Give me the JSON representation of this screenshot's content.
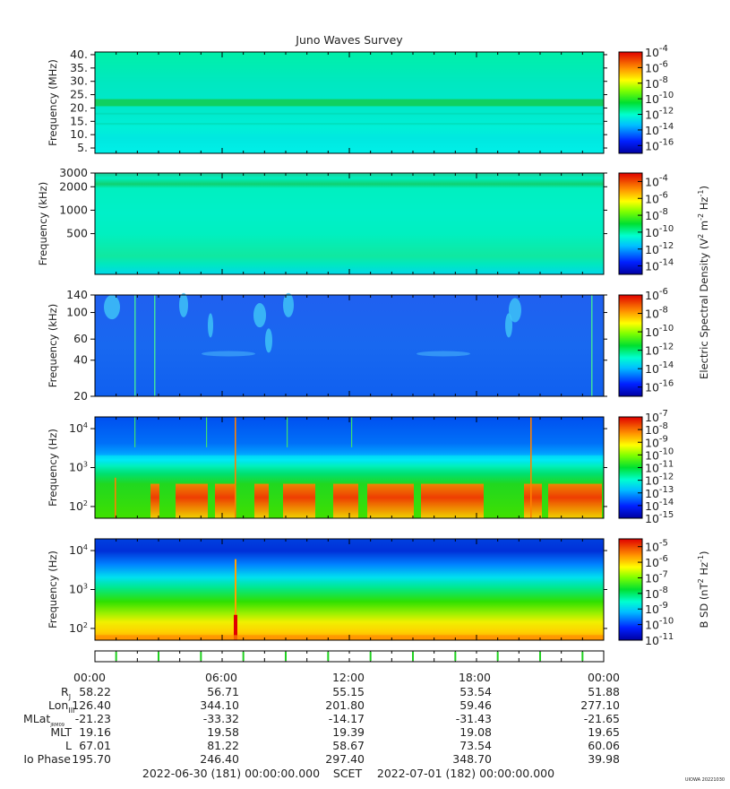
{
  "title": "Juno Waves Survey",
  "credit": "UIOWA 20221030",
  "colors": {
    "background": "#ffffff"
  },
  "chart_data": [
    {
      "type": "heatmap",
      "id": "p1",
      "ylabel": "Frequency (MHz)",
      "yscale": "linear",
      "ylim": [
        3,
        41
      ],
      "yticks": [
        5,
        10,
        15,
        20,
        25,
        30,
        35,
        40
      ],
      "yticklabels": [
        "5.",
        "10.",
        "15.",
        "20.",
        "25.",
        "30.",
        "35.",
        "40."
      ],
      "colorbar": {
        "min_exp": -17,
        "max_exp": -4,
        "tick_exps": [
          -16,
          -14,
          -12,
          -10,
          -8,
          -6,
          -4
        ],
        "labels": [
          "10",
          "10",
          "10",
          "10",
          "10",
          "10",
          "10"
        ],
        "sup": [
          "-16",
          "-14",
          "-12",
          "-10",
          "-8",
          "-6",
          "-4"
        ]
      }
    },
    {
      "type": "heatmap",
      "id": "p2",
      "ylabel": "Frequency (kHz)",
      "yscale": "log",
      "ylim": [
        150,
        3000
      ],
      "yticks": [
        500,
        1000,
        2000,
        3000
      ],
      "yticklabels": [
        "500",
        "1000",
        "2000",
        "3000"
      ],
      "colorbar": {
        "min_exp": -15,
        "max_exp": -3,
        "tick_exps": [
          -14,
          -12,
          -10,
          -8,
          -6,
          -4
        ],
        "labels": [
          "10",
          "10",
          "10",
          "10",
          "10",
          "10"
        ],
        "sup": [
          "-14",
          "-12",
          "-10",
          "-8",
          "-6",
          "-4"
        ]
      }
    },
    {
      "type": "heatmap",
      "id": "p3",
      "ylabel": "Frequency (kHz)",
      "yscale": "log",
      "ylim": [
        20,
        140
      ],
      "yticks": [
        20,
        40,
        60,
        100,
        140
      ],
      "yticklabels": [
        "20",
        "40",
        "60",
        "100",
        "140"
      ],
      "colorbar": {
        "min_exp": -17,
        "max_exp": -6,
        "tick_exps": [
          -16,
          -14,
          -12,
          -10,
          -8,
          -6
        ],
        "labels": [
          "10",
          "10",
          "10",
          "10",
          "10",
          "10"
        ],
        "sup": [
          "-16",
          "-14",
          "-12",
          "-10",
          "-8",
          "-6"
        ]
      }
    },
    {
      "type": "heatmap",
      "id": "p4",
      "ylabel": "Frequency (Hz)",
      "yscale": "log",
      "ylim": [
        50,
        20000
      ],
      "yticks": [
        100,
        1000,
        10000
      ],
      "yticklabels": [
        "10",
        "10",
        "10"
      ],
      "yticksup": [
        "2",
        "3",
        "4"
      ],
      "colorbar": {
        "min_exp": -15,
        "max_exp": -7,
        "tick_exps": [
          -15,
          -14,
          -13,
          -12,
          -11,
          -10,
          -9,
          -8,
          -7
        ],
        "labels": [
          "10",
          "10",
          "10",
          "10",
          "10",
          "10",
          "10",
          "10",
          "10"
        ],
        "sup": [
          "-15",
          "-14",
          "-13",
          "-12",
          "-11",
          "-10",
          "-9",
          "-8",
          "-7"
        ]
      }
    },
    {
      "type": "heatmap",
      "id": "p5",
      "ylabel": "Frequency (Hz)",
      "yscale": "log",
      "ylim": [
        50,
        20000
      ],
      "yticks": [
        100,
        1000,
        10000
      ],
      "yticklabels": [
        "10",
        "10",
        "10"
      ],
      "yticksup": [
        "2",
        "3",
        "4"
      ],
      "colorbar": {
        "min_exp": -11,
        "max_exp": -4.5,
        "tick_exps": [
          -11,
          -10,
          -9,
          -8,
          -7,
          -6,
          -5
        ],
        "labels": [
          "10",
          "10",
          "10",
          "10",
          "10",
          "10",
          "10"
        ],
        "sup": [
          "-11",
          "-10",
          "-9",
          "-8",
          "-7",
          "-6",
          "-5"
        ]
      }
    }
  ],
  "colorbar_labels": {
    "electric": "Electric Spectral Density (V",
    "electric_parts": [
      "Electric Spectral Density (V",
      "2",
      " m",
      "-2",
      " Hz",
      "-1",
      ")"
    ],
    "bsd_parts": [
      "B SD (nT",
      "2",
      " Hz",
      "-1",
      ")"
    ]
  },
  "time_axis": {
    "ticks": [
      "00:00",
      "06:00",
      "12:00",
      "18:00",
      "00:00"
    ],
    "xlim_hours": [
      0,
      24
    ]
  },
  "ephemeris": {
    "rows": [
      {
        "label": "R",
        "sub": "J",
        "values": [
          "58.22",
          "56.71",
          "55.15",
          "53.54",
          "51.88"
        ]
      },
      {
        "label": "Lon",
        "sub": "III",
        "values": [
          "126.40",
          "344.10",
          "201.80",
          "59.46",
          "277.10"
        ]
      },
      {
        "label": "MLat",
        "sub": "JRM09",
        "values": [
          "-21.23",
          "-33.32",
          "-14.17",
          "-31.43",
          "-21.65"
        ]
      },
      {
        "label": "MLT",
        "sub": "",
        "values": [
          "19.16",
          "19.58",
          "19.39",
          "19.08",
          "19.65"
        ]
      },
      {
        "label": "L",
        "sub": "",
        "values": [
          "67.01",
          "81.22",
          "58.67",
          "73.54",
          "60.06"
        ]
      },
      {
        "label": "Io Phase",
        "sub": "",
        "values": [
          "195.70",
          "246.40",
          "297.40",
          "348.70",
          "39.98"
        ]
      }
    ]
  },
  "footer": {
    "start": "2022-06-30 (181) 00:00:00.000",
    "scet": "SCET",
    "end": "2022-07-01 (182) 00:00:00.000"
  }
}
